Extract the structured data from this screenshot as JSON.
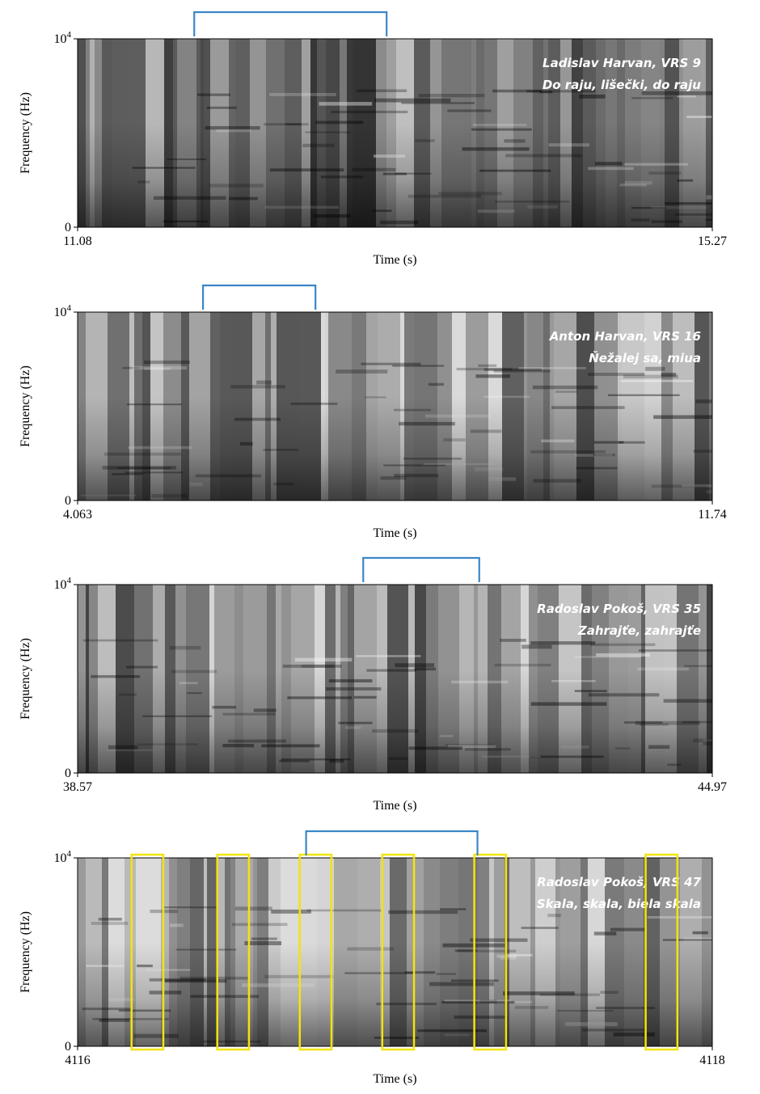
{
  "chart_data": [
    {
      "type": "heatmap",
      "title": "",
      "caption": [
        "Ladislav Harvan, VRS 9",
        "Do raju, lišečki, do raju"
      ],
      "xlabel": "Time (s)",
      "ylabel": "Frequency (Hz)",
      "xlim": [
        11.08,
        15.27
      ],
      "ylim": [
        0,
        10000
      ],
      "x_tick_labels": [
        "11.08",
        "15.27"
      ],
      "y_tick_labels": {
        "base": "10",
        "exp": "4",
        "zero": "0"
      },
      "bracket": [
        11.85,
        13.12
      ],
      "boxes": []
    },
    {
      "type": "heatmap",
      "title": "",
      "caption": [
        "Anton Harvan, VRS 16",
        "Ňežalej sa, miua"
      ],
      "xlabel": "Time (s)",
      "ylabel": "Frequency (Hz)",
      "xlim": [
        4.063,
        11.74
      ],
      "ylim": [
        0,
        10000
      ],
      "x_tick_labels": [
        "4.063",
        "11.74"
      ],
      "y_tick_labels": {
        "base": "10",
        "exp": "4",
        "zero": "0"
      },
      "bracket": [
        5.58,
        6.94
      ],
      "boxes": []
    },
    {
      "type": "heatmap",
      "title": "",
      "caption": [
        "Radoslav Pokoš, VRS 35",
        "Zahrajťe, zahrajťe"
      ],
      "xlabel": "Time (s)",
      "ylabel": "Frequency (Hz)",
      "xlim": [
        38.57,
        44.97
      ],
      "ylim": [
        0,
        10000
      ],
      "x_tick_labels": [
        "38.57",
        "44.97"
      ],
      "y_tick_labels": {
        "base": "10",
        "exp": "4",
        "zero": "0"
      },
      "bracket": [
        41.45,
        42.62
      ],
      "boxes": []
    },
    {
      "type": "heatmap",
      "title": "",
      "caption": [
        "Radoslav Pokoš, VRS 47",
        "Skala, skala, biela skala"
      ],
      "xlabel": "Time (s)",
      "ylabel": "Frequency (Hz)",
      "xlim": [
        4116,
        4118
      ],
      "ylim": [
        0,
        10000
      ],
      "x_tick_labels": [
        "4116",
        "4118"
      ],
      "y_tick_labels": {
        "base": "10",
        "exp": "4",
        "zero": "0"
      },
      "bracket": [
        4116.72,
        4117.26
      ],
      "boxes": [
        [
          4116.17,
          4116.27
        ],
        [
          4116.44,
          4116.54
        ],
        [
          4116.7,
          4116.8
        ],
        [
          4116.96,
          4117.06
        ],
        [
          4117.25,
          4117.35
        ],
        [
          4117.79,
          4117.89
        ]
      ]
    }
  ],
  "colors": {
    "bracket": "#3b86c6",
    "box": "#f2e40c",
    "caption": "#ffffff",
    "frame": "#000000"
  }
}
